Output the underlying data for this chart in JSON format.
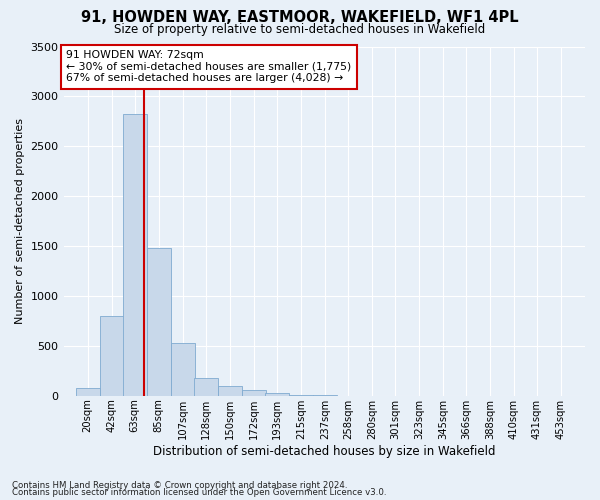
{
  "title1": "91, HOWDEN WAY, EASTMOOR, WAKEFIELD, WF1 4PL",
  "title2": "Size of property relative to semi-detached houses in Wakefield",
  "xlabel": "Distribution of semi-detached houses by size in Wakefield",
  "ylabel": "Number of semi-detached properties",
  "footer1": "Contains HM Land Registry data © Crown copyright and database right 2024.",
  "footer2": "Contains public sector information licensed under the Open Government Licence v3.0.",
  "annotation_title": "91 HOWDEN WAY: 72sqm",
  "annotation_line1": "← 30% of semi-detached houses are smaller (1,775)",
  "annotation_line2": "67% of semi-detached houses are larger (4,028) →",
  "categories": [
    "20sqm",
    "42sqm",
    "63sqm",
    "85sqm",
    "107sqm",
    "128sqm",
    "150sqm",
    "172sqm",
    "193sqm",
    "215sqm",
    "237sqm",
    "258sqm",
    "280sqm",
    "301sqm",
    "323sqm",
    "345sqm",
    "366sqm",
    "388sqm",
    "410sqm",
    "431sqm",
    "453sqm"
  ],
  "bin_centers": [
    20,
    42,
    63,
    85,
    107,
    128,
    150,
    172,
    193,
    215,
    237,
    258,
    280,
    301,
    323,
    345,
    366,
    388,
    410,
    431,
    453
  ],
  "values": [
    75,
    800,
    2820,
    1480,
    530,
    175,
    100,
    55,
    30,
    10,
    5,
    2,
    1,
    0,
    0,
    0,
    0,
    0,
    0,
    0,
    0
  ],
  "bar_color": "#c8d8ea",
  "bar_edge_color": "#7faad0",
  "vline_color": "#cc0000",
  "vline_x": 72,
  "ylim": [
    0,
    3500
  ],
  "yticks": [
    0,
    500,
    1000,
    1500,
    2000,
    2500,
    3000,
    3500
  ],
  "bg_color": "#e8f0f8",
  "grid_color": "#ffffff",
  "annotation_box_facecolor": "#ffffff",
  "annotation_box_edgecolor": "#cc0000",
  "bar_spacing": 22
}
